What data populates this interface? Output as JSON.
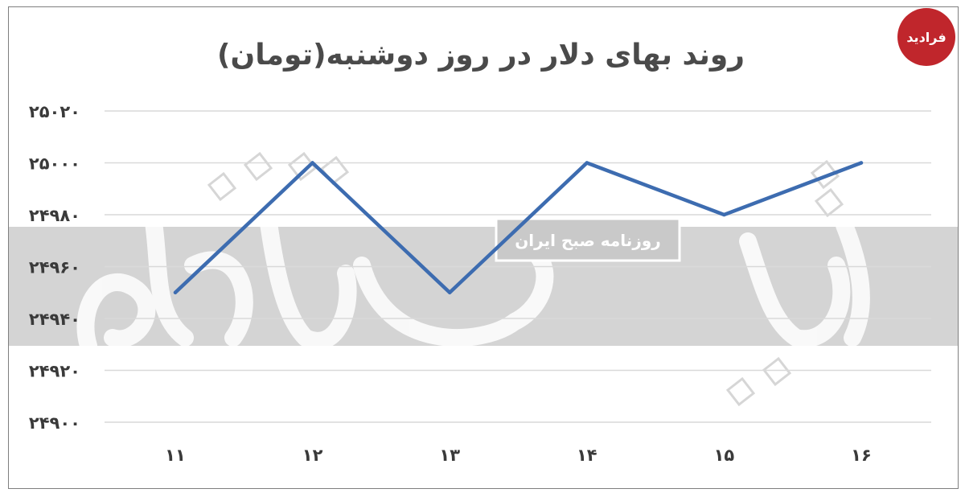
{
  "chart_data": {
    "type": "line",
    "title": "روند بهای دلار در روز دوشنبه(تومان)",
    "xlabel": "",
    "ylabel": "",
    "categories": [
      "۱۱",
      "۱۲",
      "۱۳",
      "۱۴",
      "۱۵",
      "۱۶"
    ],
    "series": [
      {
        "values": [
          24950,
          25000,
          24950,
          25000,
          24980,
          25000
        ]
      }
    ],
    "ylim": [
      24900,
      25020
    ],
    "y_tick_values": [
      24900,
      24920,
      24940,
      24960,
      24980,
      25000,
      25020
    ],
    "y_tick_labels": [
      "۲۴۹۰۰",
      "۲۴۹۲۰",
      "۲۴۹۴۰",
      "۲۴۹۶۰",
      "۲۴۹۸۰",
      "۲۵۰۰۰",
      "۲۵۰۲۰"
    ],
    "grid": true,
    "legend": "none",
    "line_color": "#3d6cb0",
    "grid_color": "#d9d9d9"
  },
  "watermark": {
    "caption": "روزنامه صبح ایران",
    "band_color": "#d4d4d4"
  },
  "logo": {
    "text": "فرادید",
    "color": "#c0262c"
  }
}
